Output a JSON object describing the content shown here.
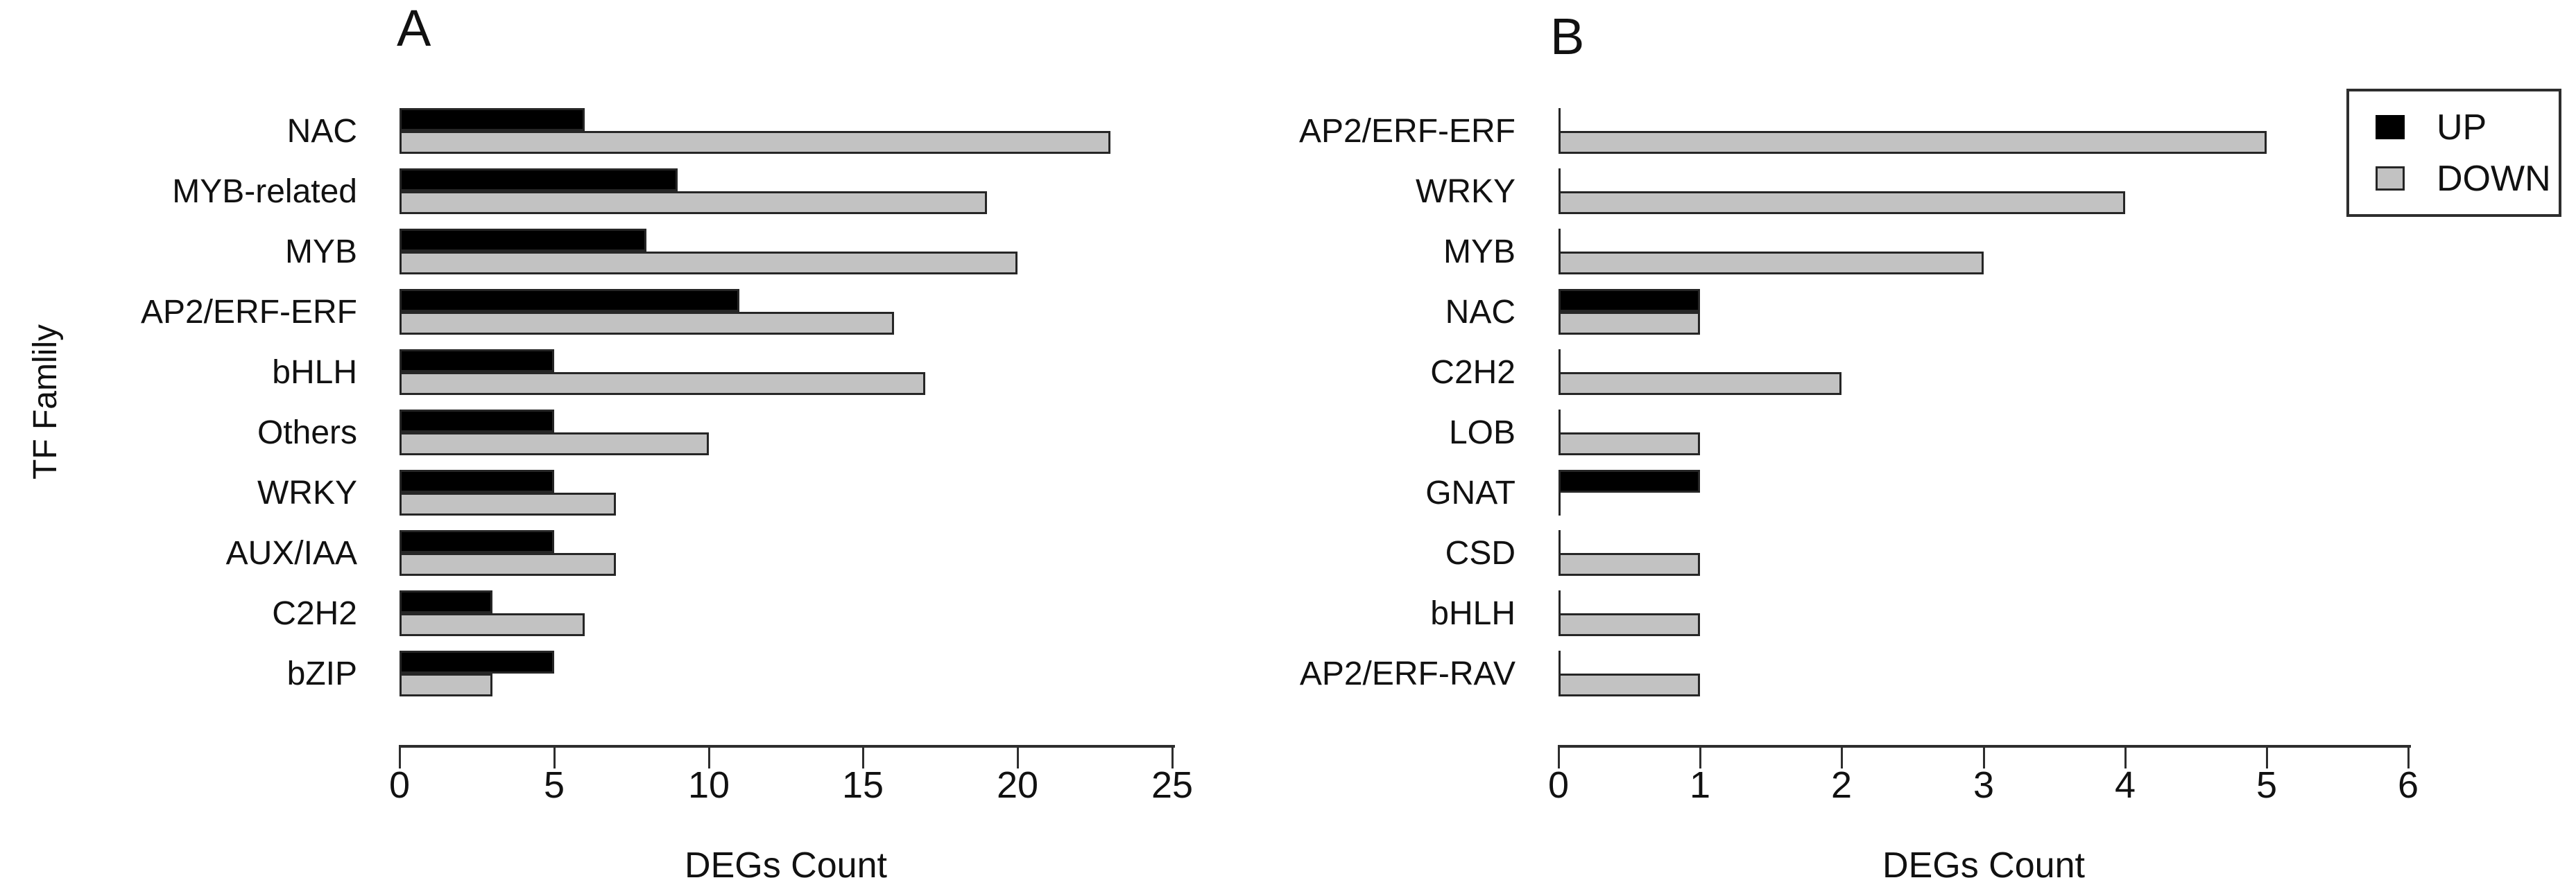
{
  "figure": {
    "y_axis_label": "TF Famlily",
    "legend": {
      "up_label": "UP",
      "down_label": "DOWN"
    },
    "colors": {
      "up_fill": "#000000",
      "down_fill": "#c2c2c2",
      "bar_border": "#262626",
      "axis": "#2e2e2e",
      "text": "#111111",
      "background": "#ffffff"
    }
  },
  "chart_data": [
    {
      "type": "bar",
      "panel": "A",
      "orientation": "horizontal",
      "title": "A",
      "xlabel": "DEGs Count",
      "ylabel": "TF Famlily",
      "grid": false,
      "legend_position": "figure-top-right",
      "categories": [
        "NAC",
        "MYB-related",
        "MYB",
        "AP2/ERF-ERF",
        "bHLH",
        "Others",
        "WRKY",
        "AUX/IAA",
        "C2H2",
        "bZIP"
      ],
      "series": [
        {
          "name": "UP",
          "values": [
            6,
            9,
            8,
            11,
            5,
            5,
            5,
            5,
            3,
            5
          ]
        },
        {
          "name": "DOWN",
          "values": [
            23,
            19,
            20,
            16,
            17,
            10,
            7,
            7,
            6,
            3
          ]
        }
      ],
      "xlim": [
        0,
        25
      ],
      "xticks": [
        0,
        5,
        10,
        15,
        20,
        25
      ]
    },
    {
      "type": "bar",
      "panel": "B",
      "orientation": "horizontal",
      "title": "B",
      "xlabel": "DEGs Count",
      "ylabel": "",
      "grid": false,
      "legend_position": "figure-top-right",
      "categories": [
        "AP2/ERF-ERF",
        "WRKY",
        "MYB",
        "NAC",
        "C2H2",
        "LOB",
        "GNAT",
        "CSD",
        "bHLH",
        "AP2/ERF-RAV"
      ],
      "series": [
        {
          "name": "UP",
          "values": [
            0,
            0,
            0,
            1,
            0,
            0,
            1,
            0,
            0,
            0
          ]
        },
        {
          "name": "DOWN",
          "values": [
            5,
            4,
            3,
            1,
            2,
            1,
            0,
            1,
            1,
            1
          ]
        }
      ],
      "xlim": [
        0,
        6
      ],
      "xticks": [
        0,
        1,
        2,
        3,
        4,
        5,
        6
      ]
    }
  ]
}
